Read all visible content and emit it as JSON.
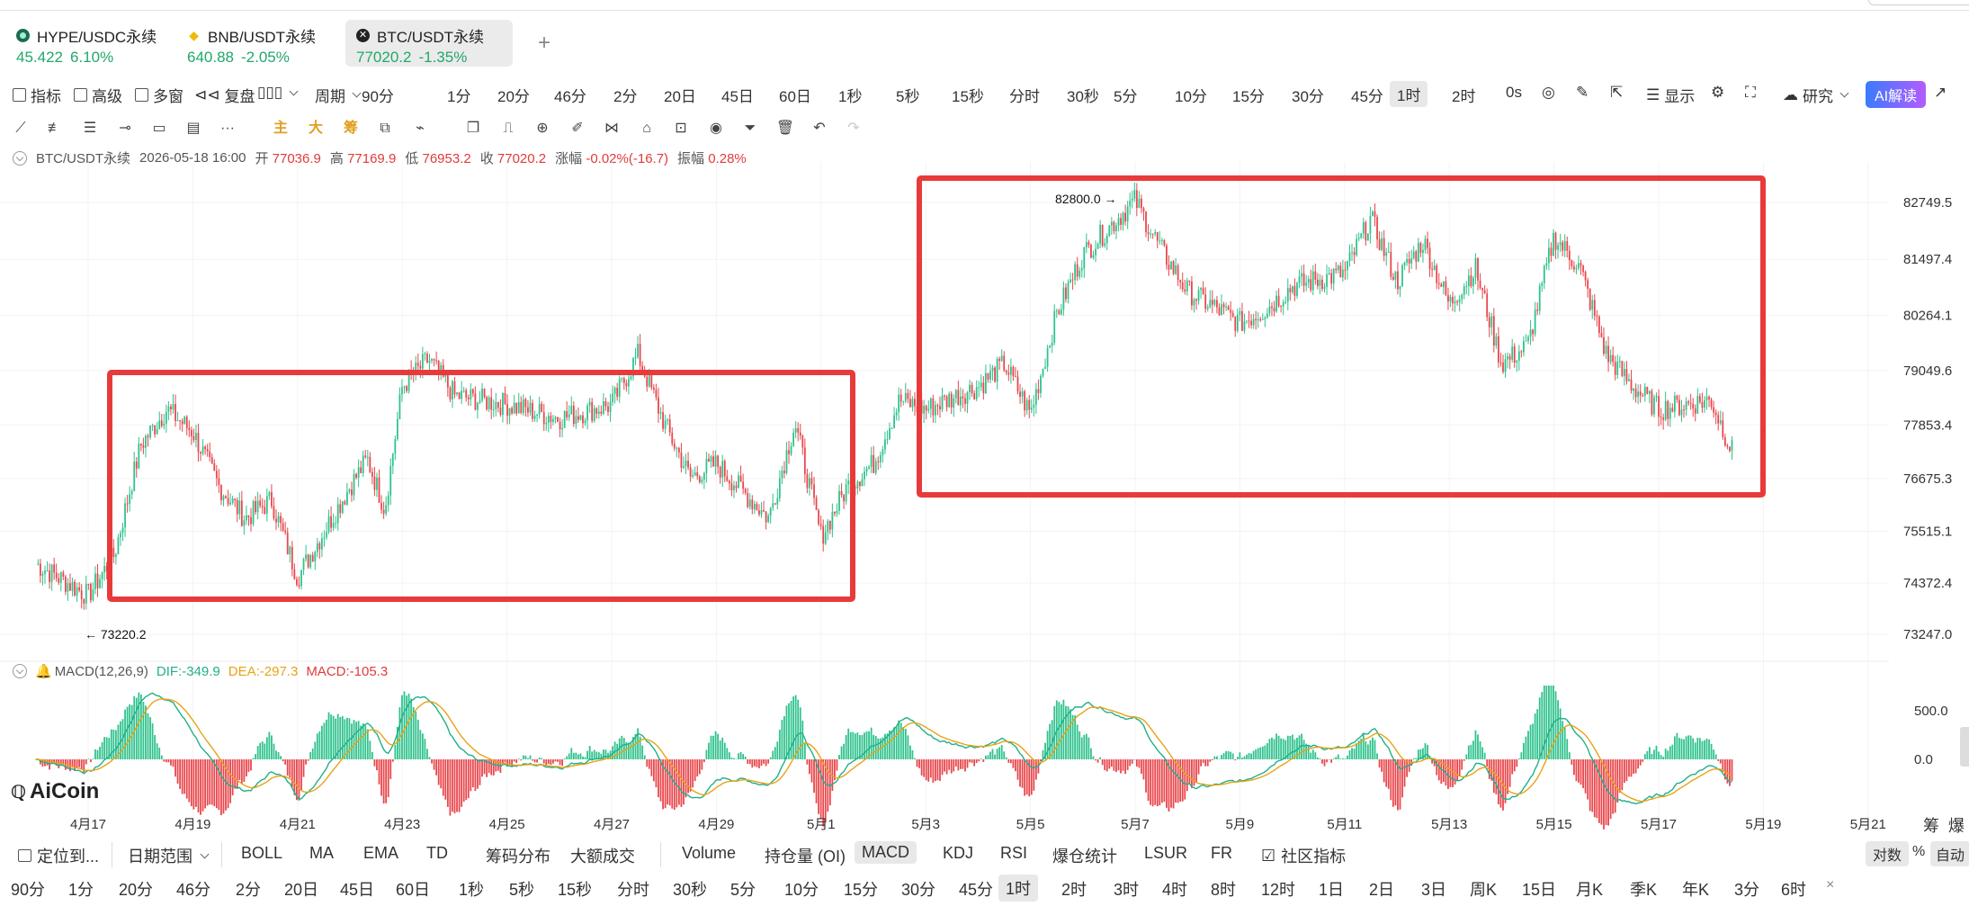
{
  "tabs": [
    {
      "pair": "HYPE/USDC永续",
      "price": "45.422",
      "change": "6.10%",
      "icon": "hype-coin-icon"
    },
    {
      "pair": "BNB/USDT永续",
      "price": "640.88",
      "change": "-2.05%",
      "icon": "bnb-coin-icon"
    },
    {
      "pair": "BTC/USDT永续",
      "price": "77020.2",
      "change": "-1.35%",
      "icon": "btc-coin-icon",
      "active": true
    }
  ],
  "tab_add": "+",
  "toolbar": {
    "indicator": "指标",
    "advanced": "高级",
    "multi_window": "多窗",
    "replay": "复盘",
    "period": "周期",
    "intervals": [
      "90分",
      "1分",
      "20分",
      "46分",
      "2分",
      "20日",
      "45日",
      "60日",
      "1秒",
      "5秒",
      "15秒",
      "分时",
      "30秒",
      "5分",
      "10分",
      "15分",
      "30分",
      "45分",
      "1时",
      "2时"
    ],
    "selected_interval": "1时",
    "countdown": "0s",
    "display": "显示",
    "research": "研究",
    "ai": "AI解读"
  },
  "drawing_tools": {
    "main": "主",
    "big": "大",
    "chip": "筹",
    "more": "···"
  },
  "ohlc": {
    "pair": "BTC/USDT永续",
    "time": "2026-05-18 16:00",
    "open_label": "开",
    "open": "77036.9",
    "high_label": "高",
    "high": "77169.9",
    "low_label": "低",
    "low": "76953.2",
    "close_label": "收",
    "close": "77020.2",
    "change_label": "涨幅",
    "change": "-0.02%(-16.7)",
    "amp_label": "振幅",
    "amp": "0.28%"
  },
  "macd_info": {
    "name": "MACD(12,26,9)",
    "dif": "DIF:-349.9",
    "dea": "DEA:-297.3",
    "macd": "MACD:-105.3"
  },
  "logo": "AiCoin",
  "chart_data": {
    "type": "line",
    "symbol": "BTC/USDT",
    "interval": "1h",
    "price_axis": [
      82749.5,
      81497.4,
      80264.1,
      79049.6,
      77853.4,
      76675.3,
      75515.1,
      74372.4,
      73247.0
    ],
    "macd_axis": [
      "500.0",
      "0.0"
    ],
    "x_ticks": [
      "4月17",
      "4月19",
      "4月21",
      "4月23",
      "4月25",
      "4月27",
      "4月29",
      "5月1",
      "5月3",
      "5月5",
      "5月7",
      "5月9",
      "5月11",
      "5月13",
      "5月15",
      "5月17",
      "5月19",
      "5月21"
    ],
    "price_path": [
      [
        "4月16",
        74800
      ],
      [
        "4月17",
        74100
      ],
      [
        "4月17",
        75000
      ],
      [
        "4月18",
        77400
      ],
      [
        "4月18",
        78200
      ],
      [
        "4月19",
        77700
      ],
      [
        "4月19",
        76500
      ],
      [
        "4月20",
        75800
      ],
      [
        "4月20",
        76200
      ],
      [
        "4月21",
        74500
      ],
      [
        "4月22",
        76500
      ],
      [
        "4月22",
        77100
      ],
      [
        "4月22",
        76000
      ],
      [
        "4月23",
        78700
      ],
      [
        "4月23",
        79300
      ],
      [
        "4月24",
        78500
      ],
      [
        "4月25",
        78300
      ],
      [
        "4月26",
        78000
      ],
      [
        "4月27",
        78300
      ],
      [
        "4月27",
        79400
      ],
      [
        "4月28",
        77900
      ],
      [
        "4月28",
        76700
      ],
      [
        "4月29",
        77000
      ],
      [
        "4月30",
        75800
      ],
      [
        "4月30",
        77900
      ],
      [
        "5月1",
        75400
      ],
      [
        "5月1",
        76500
      ],
      [
        "5月2",
        77000
      ],
      [
        "5月2",
        78400
      ],
      [
        "5月3",
        78200
      ],
      [
        "5月4",
        78700
      ],
      [
        "5月4",
        79200
      ],
      [
        "5月5",
        78100
      ],
      [
        "5月5",
        80300
      ],
      [
        "5月6",
        81600
      ],
      [
        "5月7",
        82800
      ],
      [
        "5月7",
        81700
      ],
      [
        "5月8",
        80800
      ],
      [
        "5月9",
        80100
      ],
      [
        "5月9",
        80400
      ],
      [
        "5月10",
        80900
      ],
      [
        "5月11",
        81200
      ],
      [
        "5月11",
        82400
      ],
      [
        "5月12",
        81000
      ],
      [
        "5月12",
        81900
      ],
      [
        "5月13",
        80500
      ],
      [
        "5月13",
        81300
      ],
      [
        "5月14",
        79200
      ],
      [
        "5月14",
        79600
      ],
      [
        "5月15",
        82000
      ],
      [
        "5月15",
        81300
      ],
      [
        "5月16",
        79400
      ],
      [
        "5月16",
        78700
      ],
      [
        "5月17",
        78200
      ],
      [
        "5月17",
        78300
      ],
      [
        "5月18",
        78400
      ],
      [
        "5月18",
        77000
      ]
    ],
    "annotations": [
      "82800.0 →",
      "← 73220.2"
    ],
    "highlight_boxes": 2
  },
  "indicators": {
    "locate": "定位到...",
    "date_range": "日期范围",
    "main": [
      "BOLL",
      "MA",
      "EMA",
      "TD",
      "筹码分布",
      "大额成交"
    ],
    "sub": [
      "Volume",
      "持仓量 (OI)",
      "MACD",
      "KDJ",
      "RSI",
      "爆仓统计",
      "LSUR",
      "FR"
    ],
    "selected_sub": "MACD",
    "community": "社区指标",
    "right_labels": [
      "筹",
      "爆"
    ],
    "log": "对数",
    "pct": "%",
    "auto": "自动"
  },
  "bottom_periods": [
    "90分",
    "1分",
    "20分",
    "46分",
    "2分",
    "20日",
    "45日",
    "60日",
    "1秒",
    "5秒",
    "15秒",
    "分时",
    "30秒",
    "5分",
    "10分",
    "15分",
    "30分",
    "45分",
    "1时",
    "2时",
    "3时",
    "4时",
    "8时",
    "12时",
    "1日",
    "2日",
    "3日",
    "周K",
    "15日",
    "月K",
    "季K",
    "年K",
    "3分",
    "6时"
  ],
  "bottom_selected": "1时",
  "close_x": "×"
}
